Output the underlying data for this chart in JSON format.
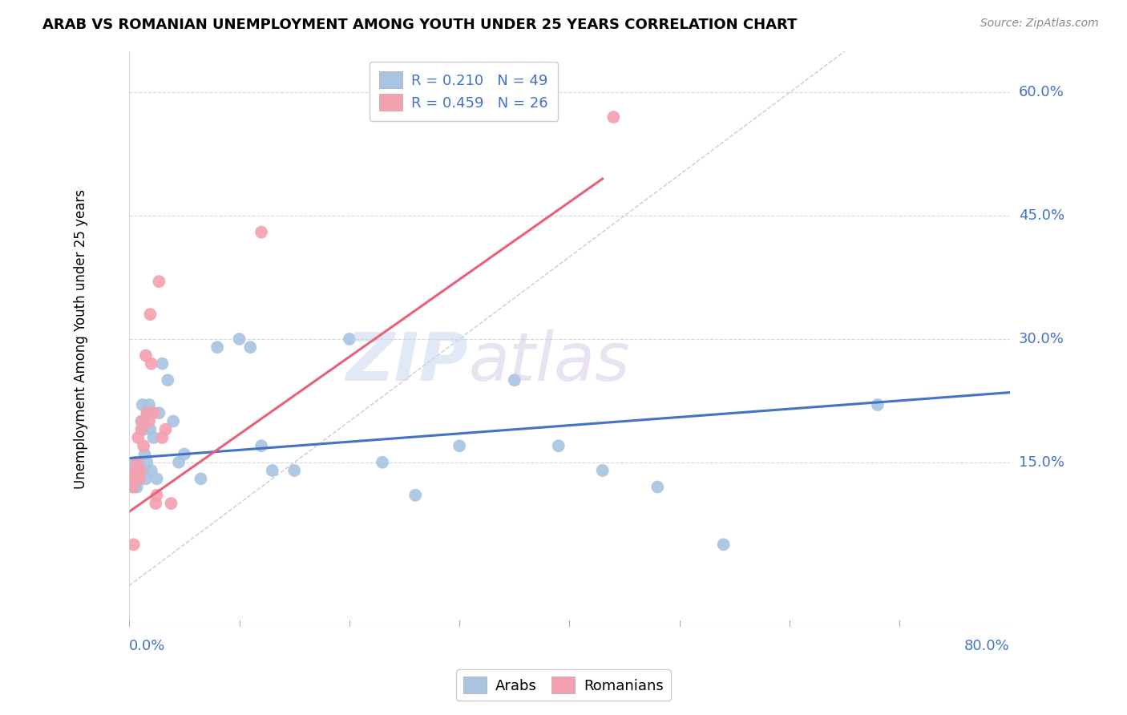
{
  "title": "ARAB VS ROMANIAN UNEMPLOYMENT AMONG YOUTH UNDER 25 YEARS CORRELATION CHART",
  "source": "Source: ZipAtlas.com",
  "ylabel": "Unemployment Among Youth under 25 years",
  "watermark_zip": "ZIP",
  "watermark_atlas": "atlas",
  "legend_arab_R": 0.21,
  "legend_arab_N": 49,
  "legend_romanian_R": 0.459,
  "legend_romanian_N": 26,
  "arab_color": "#a8c4e0",
  "romanian_color": "#f4a0b0",
  "arab_line_color": "#4472c4",
  "romanian_line_color": "#e8607a",
  "diagonal_color": "#cccccc",
  "background_color": "#ffffff",
  "grid_color": "#d8d8d8",
  "tick_color": "#4472c4",
  "xlim": [
    0.0,
    0.8
  ],
  "ylim": [
    -0.05,
    0.65
  ],
  "yticks": [
    0.15,
    0.3,
    0.45,
    0.6
  ],
  "ytick_labels": [
    "15.0%",
    "30.0%",
    "45.0%",
    "60.0%"
  ],
  "arab_x": [
    0.002,
    0.003,
    0.004,
    0.005,
    0.005,
    0.006,
    0.007,
    0.007,
    0.008,
    0.008,
    0.009,
    0.01,
    0.01,
    0.011,
    0.012,
    0.013,
    0.013,
    0.014,
    0.015,
    0.016,
    0.017,
    0.018,
    0.019,
    0.02,
    0.022,
    0.025,
    0.027,
    0.03,
    0.035,
    0.04,
    0.045,
    0.05,
    0.065,
    0.08,
    0.1,
    0.11,
    0.12,
    0.13,
    0.15,
    0.2,
    0.23,
    0.26,
    0.3,
    0.35,
    0.39,
    0.43,
    0.48,
    0.54,
    0.68
  ],
  "arab_y": [
    0.13,
    0.14,
    0.13,
    0.15,
    0.12,
    0.14,
    0.13,
    0.12,
    0.14,
    0.13,
    0.15,
    0.14,
    0.13,
    0.2,
    0.22,
    0.19,
    0.14,
    0.16,
    0.13,
    0.15,
    0.21,
    0.22,
    0.19,
    0.14,
    0.18,
    0.13,
    0.21,
    0.27,
    0.25,
    0.2,
    0.15,
    0.16,
    0.13,
    0.29,
    0.3,
    0.29,
    0.17,
    0.14,
    0.14,
    0.3,
    0.15,
    0.11,
    0.17,
    0.25,
    0.17,
    0.14,
    0.12,
    0.05,
    0.22
  ],
  "romanian_x": [
    0.002,
    0.003,
    0.004,
    0.005,
    0.006,
    0.007,
    0.008,
    0.009,
    0.01,
    0.011,
    0.012,
    0.013,
    0.015,
    0.016,
    0.018,
    0.019,
    0.02,
    0.022,
    0.024,
    0.025,
    0.027,
    0.03,
    0.033,
    0.038,
    0.12,
    0.44
  ],
  "romanian_y": [
    0.13,
    0.12,
    0.05,
    0.13,
    0.14,
    0.15,
    0.18,
    0.13,
    0.14,
    0.19,
    0.2,
    0.17,
    0.28,
    0.21,
    0.2,
    0.33,
    0.27,
    0.21,
    0.1,
    0.11,
    0.37,
    0.18,
    0.19,
    0.1,
    0.43,
    0.57
  ],
  "arab_trendline_x": [
    0.0,
    0.8
  ],
  "arab_trendline_y": [
    0.155,
    0.235
  ],
  "romanian_trendline_x": [
    0.0,
    0.43
  ],
  "romanian_trendline_y": [
    0.09,
    0.495
  ]
}
